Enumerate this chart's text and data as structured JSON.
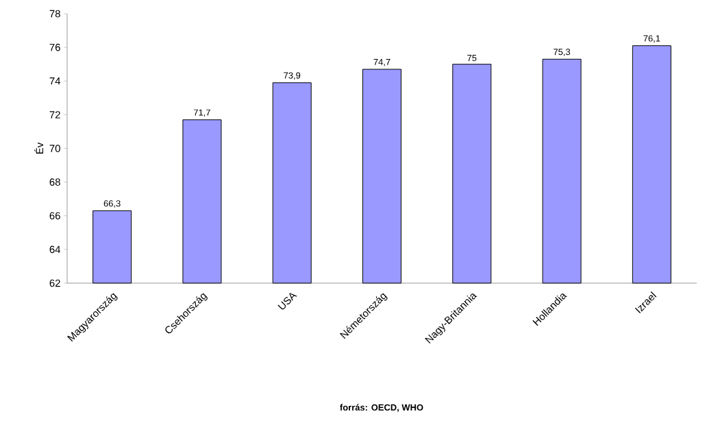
{
  "chart_data": {
    "type": "bar",
    "ylabel": "Év",
    "categories": [
      "Magyarország",
      "Csehország",
      "USA",
      "Németország",
      "Nagy-Britannia",
      "Hollandia",
      "Izrael"
    ],
    "values": [
      66.3,
      71.7,
      73.9,
      74.7,
      75,
      75.3,
      76.1
    ],
    "value_labels": [
      "66,3",
      "71,7",
      "73,9",
      "74,7",
      "75",
      "75,3",
      "76,1"
    ],
    "color": "#9999ff",
    "ylim": [
      62,
      78
    ],
    "yticks": [
      62,
      64,
      66,
      68,
      70,
      72,
      74,
      76,
      78
    ],
    "grid": false,
    "annotations": [
      "**forrás: OECD, WHO**"
    ]
  }
}
